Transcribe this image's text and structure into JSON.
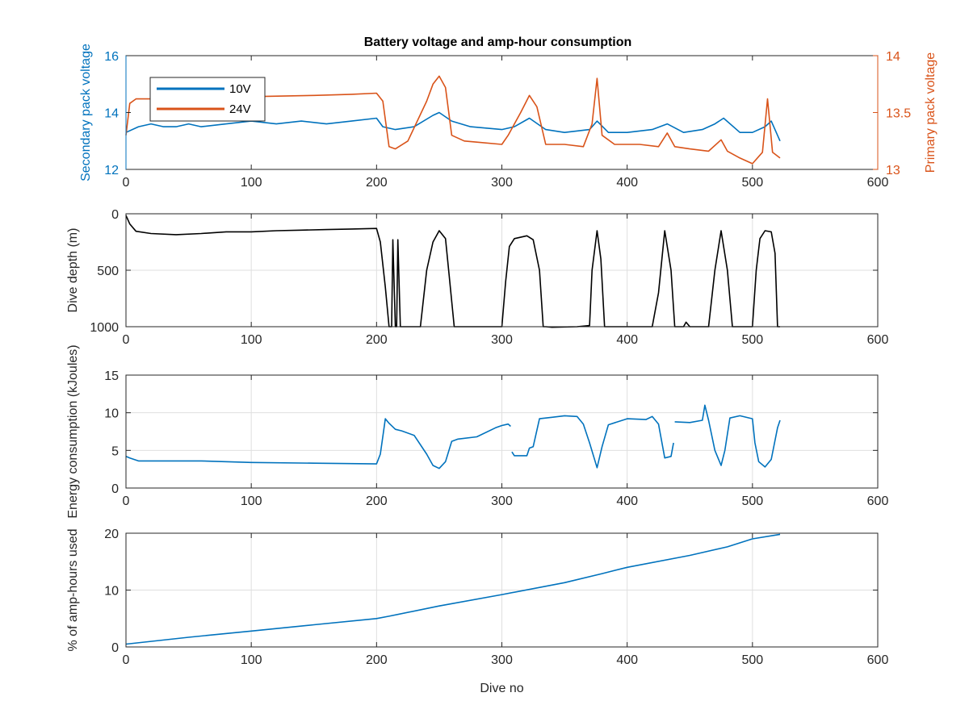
{
  "colors": {
    "blue": "#0072BD",
    "orange": "#D95319",
    "black": "#000000",
    "axis": "#262626",
    "grid": "#dfdfdf"
  },
  "chart_data": [
    {
      "type": "line",
      "title": "Battery voltage and amp-hour consumption",
      "xlabel": "",
      "ylabel": "Secondary pack voltage",
      "ylabel_right": "Primary pack voltage",
      "xlim": [
        0,
        600
      ],
      "ylim": [
        12,
        16
      ],
      "ylim_right": [
        13,
        14
      ],
      "x_ticks": [
        "0",
        "100",
        "200",
        "300",
        "400",
        "500",
        "600"
      ],
      "y_ticks": [
        "12",
        "14",
        "16"
      ],
      "y_ticks_right": [
        "13",
        "13.5",
        "14"
      ],
      "grid": false,
      "legend": "top-left",
      "series": [
        {
          "name": "10V",
          "axis": "left",
          "color": "#0072BD",
          "x": [
            0,
            10,
            20,
            30,
            40,
            50,
            60,
            80,
            100,
            120,
            140,
            160,
            180,
            200,
            205,
            215,
            230,
            245,
            250,
            260,
            275,
            300,
            310,
            322,
            335,
            350,
            370,
            376,
            385,
            400,
            420,
            432,
            445,
            460,
            470,
            477,
            490,
            500,
            510,
            515,
            522
          ],
          "y": [
            13.3,
            13.5,
            13.6,
            13.5,
            13.5,
            13.6,
            13.5,
            13.6,
            13.7,
            13.6,
            13.7,
            13.6,
            13.7,
            13.8,
            13.5,
            13.4,
            13.5,
            13.9,
            14.0,
            13.7,
            13.5,
            13.4,
            13.5,
            13.8,
            13.4,
            13.3,
            13.4,
            13.7,
            13.3,
            13.3,
            13.4,
            13.6,
            13.3,
            13.4,
            13.6,
            13.8,
            13.3,
            13.3,
            13.5,
            13.7,
            13.0
          ]
        },
        {
          "name": "24V",
          "axis": "right",
          "color": "#D95319",
          "x": [
            0,
            3,
            8,
            20,
            50,
            80,
            100,
            150,
            180,
            200,
            205,
            210,
            215,
            225,
            240,
            245,
            250,
            255,
            260,
            270,
            280,
            300,
            305,
            315,
            322,
            328,
            335,
            350,
            365,
            372,
            376,
            380,
            390,
            410,
            425,
            432,
            438,
            450,
            465,
            475,
            480,
            490,
            500,
            508,
            512,
            516,
            522
          ],
          "y": [
            13.3,
            13.58,
            13.62,
            13.62,
            13.64,
            13.65,
            13.64,
            13.65,
            13.66,
            13.67,
            13.6,
            13.2,
            13.18,
            13.25,
            13.6,
            13.75,
            13.82,
            13.72,
            13.3,
            13.25,
            13.24,
            13.22,
            13.3,
            13.5,
            13.65,
            13.55,
            13.22,
            13.22,
            13.2,
            13.4,
            13.8,
            13.3,
            13.22,
            13.22,
            13.2,
            13.32,
            13.2,
            13.18,
            13.16,
            13.26,
            13.16,
            13.1,
            13.05,
            13.15,
            13.62,
            13.15,
            13.1
          ]
        }
      ]
    },
    {
      "type": "line",
      "xlabel": "",
      "ylabel": "Dive depth (m)",
      "xlim": [
        0,
        600
      ],
      "ylim": [
        0,
        1000
      ],
      "y_reversed": true,
      "x_ticks": [
        "0",
        "100",
        "200",
        "300",
        "400",
        "500",
        "600"
      ],
      "y_ticks": [
        "0",
        "500",
        "1000"
      ],
      "grid": true,
      "series": [
        {
          "color": "#000000",
          "x": [
            0,
            3,
            8,
            20,
            40,
            60,
            80,
            100,
            120,
            140,
            160,
            180,
            200,
            203,
            207,
            210,
            212,
            213,
            215,
            216,
            217,
            219,
            225,
            235,
            240,
            245,
            250,
            255,
            258,
            262,
            270,
            290,
            300,
            303,
            306,
            310,
            320,
            325,
            330,
            333,
            335,
            340,
            360,
            370,
            372,
            376,
            379,
            382,
            385,
            400,
            420,
            425,
            430,
            435,
            438,
            440,
            445,
            447,
            450,
            460,
            465,
            470,
            475,
            480,
            484,
            486,
            490,
            500,
            503,
            506,
            510,
            515,
            518,
            520,
            522
          ],
          "y": [
            15,
            90,
            155,
            175,
            185,
            175,
            160,
            160,
            150,
            145,
            140,
            135,
            130,
            250,
            650,
            1000,
            1000,
            230,
            1000,
            1000,
            230,
            1000,
            1000,
            1000,
            500,
            250,
            150,
            220,
            550,
            1000,
            1000,
            1000,
            1000,
            600,
            290,
            220,
            195,
            230,
            500,
            1000,
            1000,
            1005,
            1000,
            990,
            500,
            150,
            400,
            1000,
            1000,
            1000,
            1000,
            700,
            150,
            500,
            1000,
            1000,
            1000,
            960,
            1000,
            1000,
            1000,
            500,
            150,
            500,
            1000,
            1000,
            1000,
            1000,
            500,
            220,
            150,
            160,
            350,
            1000,
            1000
          ]
        }
      ]
    },
    {
      "type": "line",
      "xlabel": "",
      "ylabel": "Energy consumption (kJoules)",
      "xlim": [
        0,
        600
      ],
      "ylim": [
        0,
        15
      ],
      "x_ticks": [
        "0",
        "100",
        "200",
        "300",
        "400",
        "500",
        "600"
      ],
      "y_ticks": [
        "0",
        "5",
        "10",
        "15"
      ],
      "grid": true,
      "series": [
        {
          "color": "#0072BD",
          "x": [
            0,
            3,
            10,
            30,
            60,
            100,
            150,
            200,
            203,
            207,
            210,
            215,
            220,
            230,
            240,
            245,
            250,
            255,
            260,
            265,
            280,
            295,
            300,
            305,
            307,
            null,
            308,
            310,
            320,
            322,
            325,
            330,
            340,
            350,
            360,
            365,
            370,
            376,
            380,
            385,
            400,
            415,
            420,
            425,
            430,
            435,
            437,
            null,
            438,
            450,
            460,
            462,
            465,
            470,
            475,
            478,
            482,
            490,
            500,
            502,
            505,
            510,
            515,
            520,
            522
          ],
          "y": [
            4.2,
            4.0,
            3.6,
            3.6,
            3.6,
            3.4,
            3.3,
            3.2,
            4.5,
            9.2,
            8.6,
            7.8,
            7.6,
            7.0,
            4.5,
            3.0,
            2.6,
            3.5,
            6.2,
            6.5,
            6.8,
            8.0,
            8.3,
            8.5,
            8.2,
            null,
            4.8,
            4.3,
            4.3,
            5.3,
            5.5,
            9.2,
            9.4,
            9.6,
            9.5,
            8.5,
            6.0,
            2.7,
            5.5,
            8.4,
            9.2,
            9.1,
            9.5,
            8.5,
            4.0,
            4.2,
            6.0,
            null,
            8.8,
            8.7,
            9.0,
            11.0,
            9.0,
            5.0,
            3.0,
            5.0,
            9.3,
            9.6,
            9.2,
            6.0,
            3.5,
            2.8,
            3.8,
            8.0,
            9.0
          ]
        }
      ]
    },
    {
      "type": "line",
      "xlabel": "Dive no",
      "ylabel": "% of amp-hours used",
      "xlim": [
        0,
        600
      ],
      "ylim": [
        0,
        20
      ],
      "x_ticks": [
        "0",
        "100",
        "200",
        "300",
        "400",
        "500",
        "600"
      ],
      "y_ticks": [
        "0",
        "10",
        "20"
      ],
      "grid": true,
      "series": [
        {
          "color": "#0072BD",
          "x": [
            0,
            50,
            100,
            150,
            200,
            210,
            250,
            300,
            350,
            380,
            400,
            450,
            480,
            500,
            522
          ],
          "y": [
            0.5,
            1.7,
            2.8,
            3.9,
            5.0,
            5.4,
            7.2,
            9.2,
            11.3,
            12.9,
            14.0,
            16.1,
            17.6,
            19.0,
            19.8
          ]
        }
      ]
    }
  ]
}
